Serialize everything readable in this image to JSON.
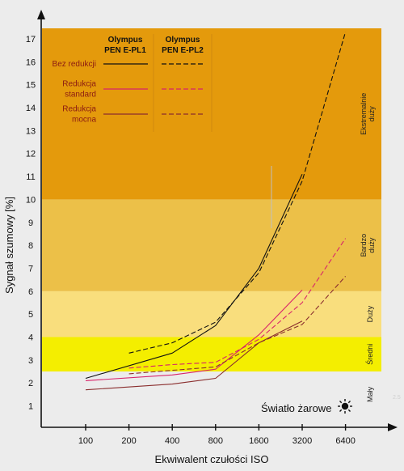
{
  "chart_data": {
    "type": "line",
    "xlabel": "Ekwiwalent czułości ISO",
    "ylabel": "Sygnał szumowy [%]",
    "categories": [
      "100",
      "200",
      "400",
      "800",
      "1600",
      "3200",
      "6400"
    ],
    "y_ticks": [
      "1",
      "2",
      "3",
      "4",
      "5",
      "6",
      "7",
      "8",
      "9",
      "10",
      "11",
      "12",
      "13",
      "14",
      "15",
      "16",
      "17"
    ],
    "ylim": [
      0.5,
      17.5
    ],
    "grid": false,
    "zones": [
      {
        "label": "Mały",
        "from": 0.5,
        "to": 2.5,
        "color": "#ececec"
      },
      {
        "label": "Średni",
        "from": 2.5,
        "to": 4.0,
        "color": "#f4ee00"
      },
      {
        "label": "Duży",
        "from": 4.0,
        "to": 6.0,
        "color": "#f9de7d"
      },
      {
        "label": "Bardzo duży",
        "from": 6.0,
        "to": 10.0,
        "color": "#ecc048"
      },
      {
        "label": "Ekstremalnie duży",
        "from": 10.0,
        "to": 17.5,
        "color": "#e49a0c"
      }
    ],
    "legend": {
      "cameras": [
        "Olympus PEN E-PL1",
        "Olympus PEN E-PL2"
      ],
      "camera_lines": [
        [
          "Olympus",
          "PEN E-PL1"
        ],
        [
          "Olympus",
          "PEN E-PL2"
        ]
      ],
      "rows": [
        {
          "lines": [
            "Bez redukcji"
          ],
          "color": "#111111"
        },
        {
          "lines": [
            "Redukcja",
            "standard"
          ],
          "color": "#d8246a"
        },
        {
          "lines": [
            "Redukcja",
            "mocna"
          ],
          "color": "#8a2e2e"
        }
      ]
    },
    "annotation": "Światło żarowe",
    "corner_mark": "2.5",
    "series": [
      {
        "camera": "Olympus PEN E-PL1",
        "noise_reduction": "Bez redukcji",
        "style": "solid",
        "color": "#111111",
        "values": [
          2.2,
          null,
          3.3,
          4.5,
          7.0,
          11.1,
          null
        ]
      },
      {
        "camera": "Olympus PEN E-PL2",
        "noise_reduction": "Bez redukcji",
        "style": "dashed",
        "color": "#111111",
        "values": [
          null,
          3.3,
          3.75,
          4.65,
          6.8,
          10.8,
          17.3
        ]
      },
      {
        "camera": "Olympus PEN E-PL1",
        "noise_reduction": "Redukcja standard",
        "style": "solid",
        "color": "#d8246a",
        "values": [
          2.1,
          null,
          2.35,
          2.6,
          4.1,
          6.05,
          null
        ]
      },
      {
        "camera": "Olympus PEN E-PL2",
        "noise_reduction": "Redukcja standard",
        "style": "dashed",
        "color": "#d8246a",
        "values": [
          null,
          2.65,
          2.8,
          2.9,
          3.9,
          5.5,
          8.3
        ]
      },
      {
        "camera": "Olympus PEN E-PL1",
        "noise_reduction": "Redukcja mocna",
        "style": "solid",
        "color": "#8a2e2e",
        "values": [
          1.7,
          null,
          1.95,
          2.2,
          3.75,
          4.7,
          null
        ]
      },
      {
        "camera": "Olympus PEN E-PL2",
        "noise_reduction": "Redukcja mocna",
        "style": "dashed",
        "color": "#8a2e2e",
        "values": [
          null,
          2.4,
          2.55,
          2.7,
          3.75,
          4.55,
          6.65
        ]
      }
    ]
  }
}
